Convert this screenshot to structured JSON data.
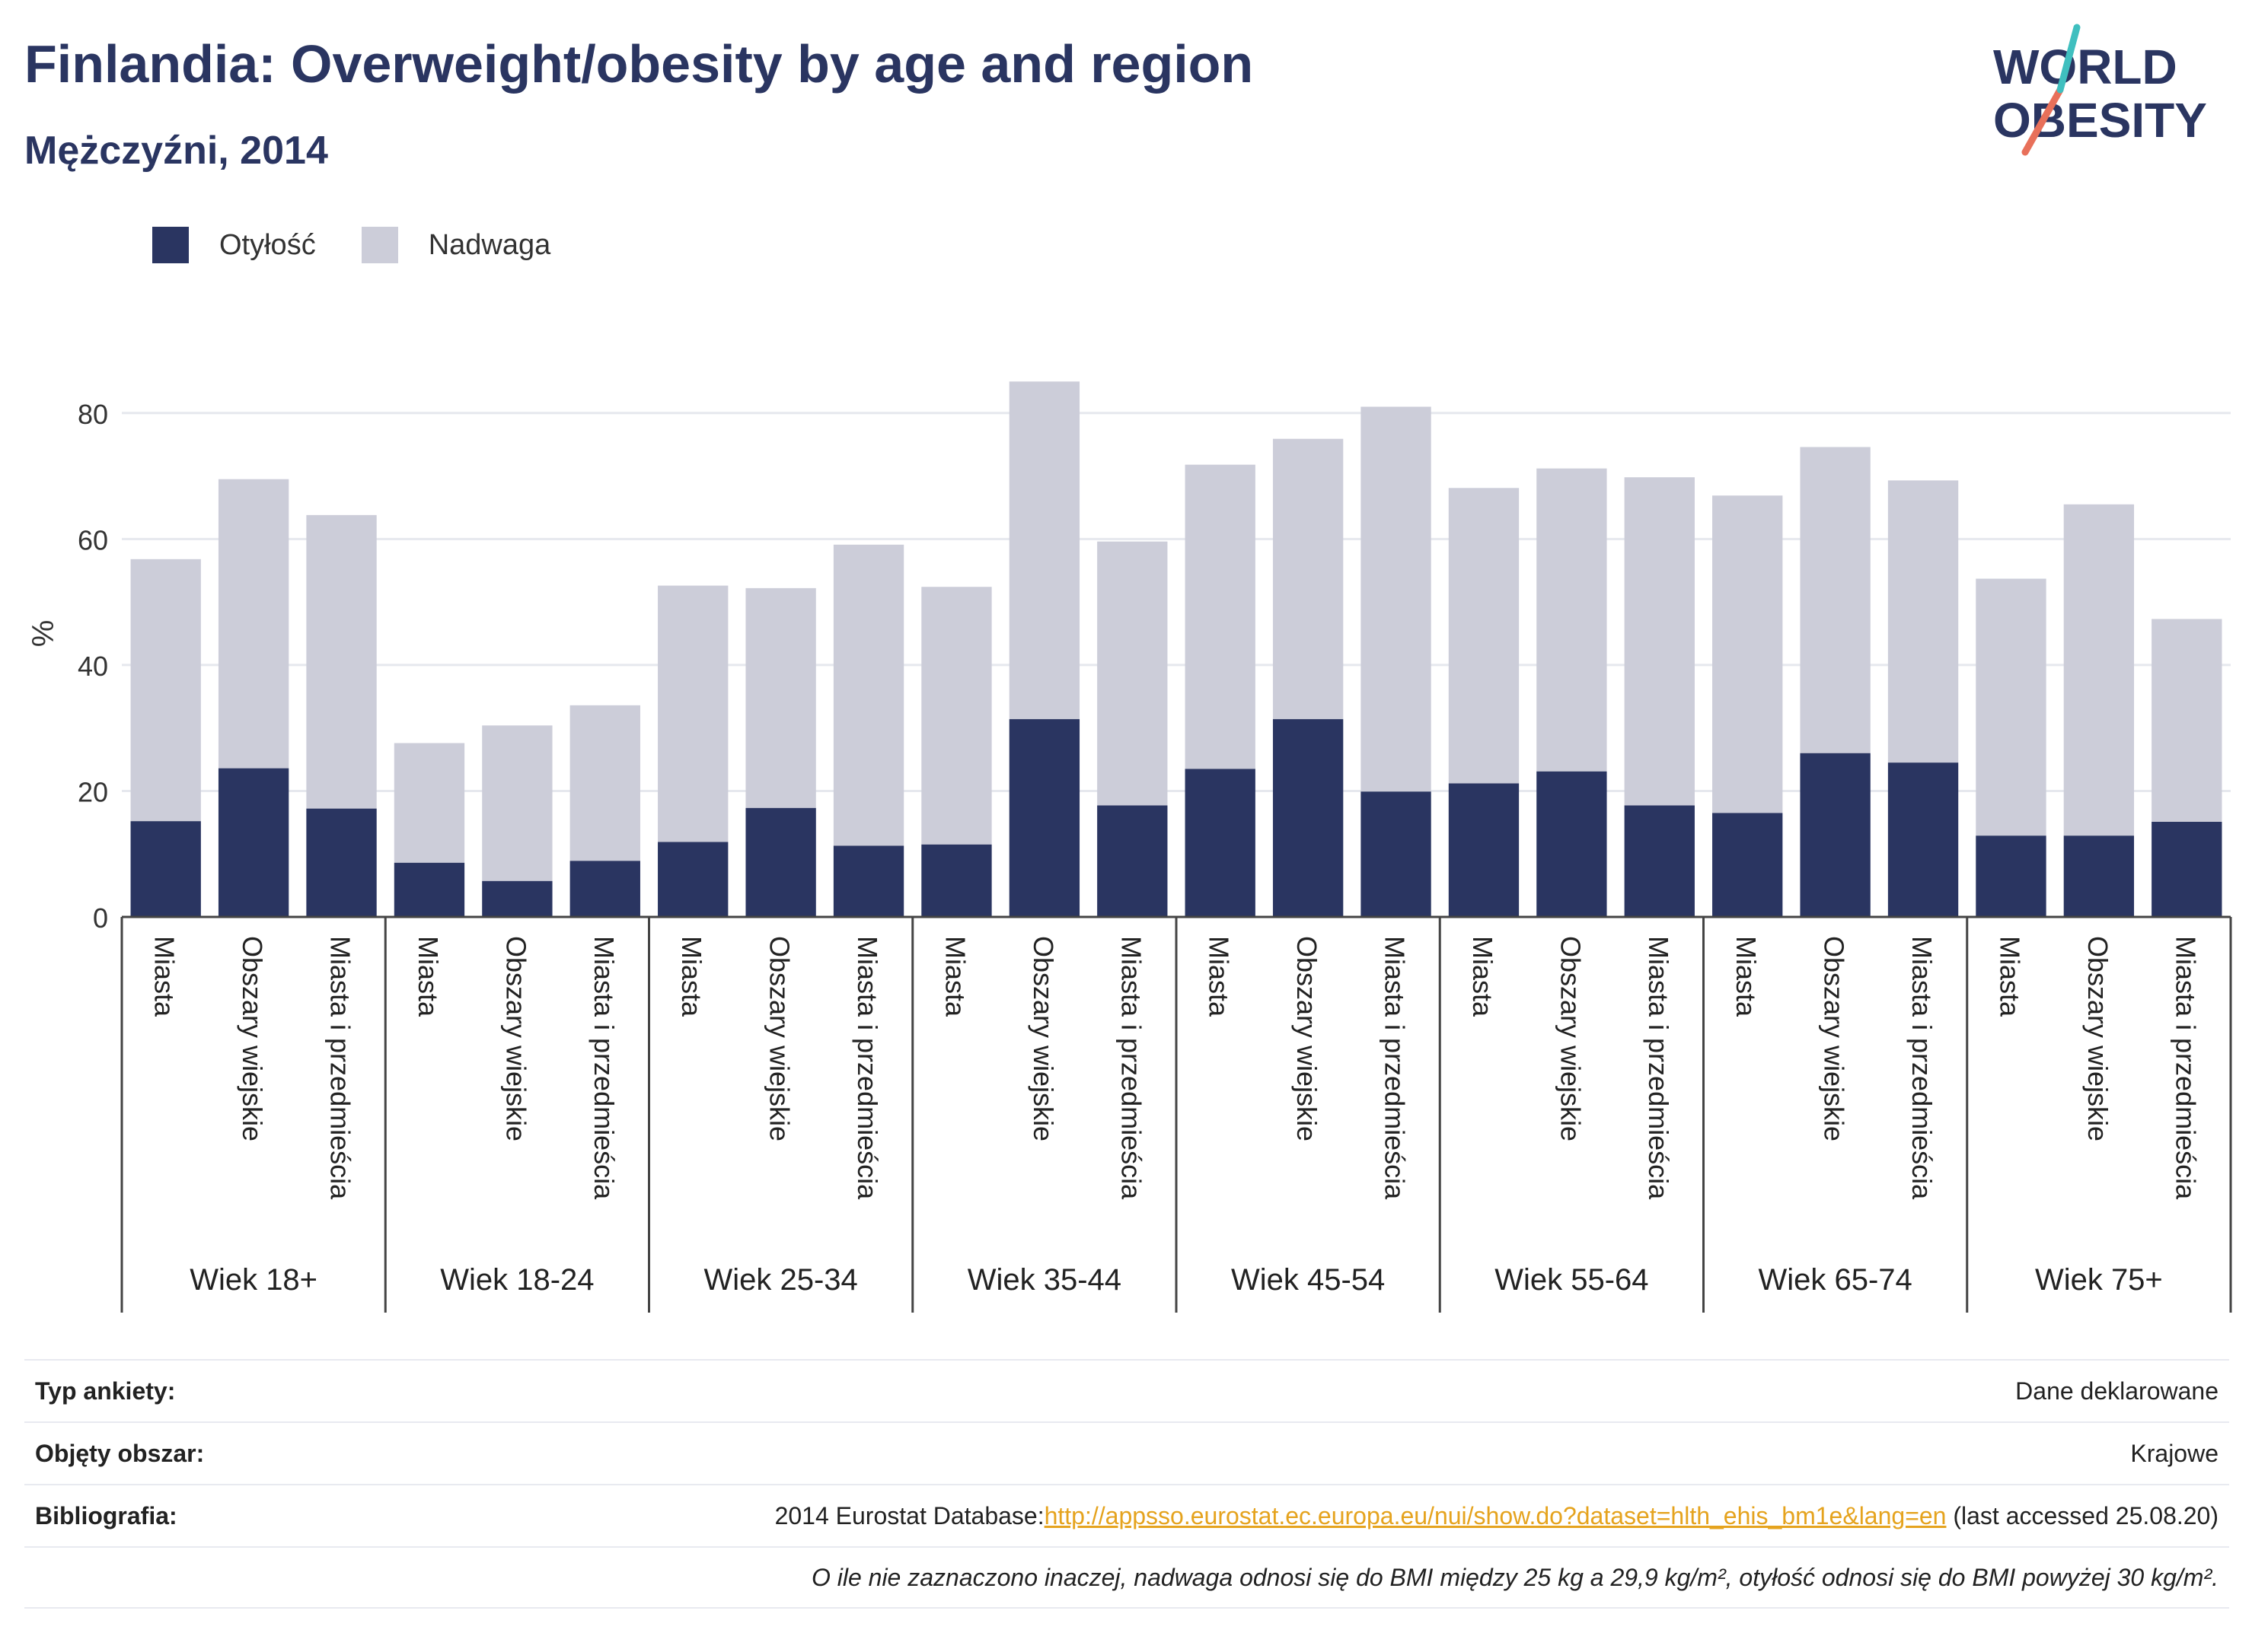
{
  "header": {
    "title": "Finlandia: Overweight/obesity by age and region",
    "subtitle": "Mężczyźni, 2014"
  },
  "logo": {
    "line1": "WORLD",
    "line2": "OBESITY"
  },
  "legend": {
    "items": [
      {
        "label": "Otyłość",
        "color": "#2a3561"
      },
      {
        "label": "Nadwaga",
        "color": "#cccdd9"
      }
    ]
  },
  "chart_data": {
    "type": "bar",
    "stacked": true,
    "ylabel": "%",
    "ylim": [
      0,
      90
    ],
    "yticks": [
      0,
      20,
      40,
      60,
      80
    ],
    "grid": true,
    "legend_position": "top-left",
    "groups": [
      {
        "label": "Wiek 18+",
        "categories": [
          "Miasta",
          "Obszary wiejskie",
          "Miasta i przedmieścia"
        ],
        "obesity": [
          15.2,
          23.6,
          17.2
        ],
        "total": [
          56.8,
          69.5,
          63.8
        ]
      },
      {
        "label": "Wiek 18-24",
        "categories": [
          "Miasta",
          "Obszary wiejskie",
          "Miasta i przedmieścia"
        ],
        "obesity": [
          8.6,
          5.7,
          8.9
        ],
        "total": [
          27.6,
          30.4,
          33.6
        ]
      },
      {
        "label": "Wiek 25-34",
        "categories": [
          "Miasta",
          "Obszary wiejskie",
          "Miasta i przedmieścia"
        ],
        "obesity": [
          11.9,
          17.3,
          11.3
        ],
        "total": [
          52.6,
          52.2,
          59.1
        ]
      },
      {
        "label": "Wiek 35-44",
        "categories": [
          "Miasta",
          "Obszary wiejskie",
          "Miasta i przedmieścia"
        ],
        "obesity": [
          11.5,
          31.4,
          17.7
        ],
        "total": [
          52.4,
          85.0,
          59.6
        ]
      },
      {
        "label": "Wiek 45-54",
        "categories": [
          "Miasta",
          "Obszary wiejskie",
          "Miasta i przedmieścia"
        ],
        "obesity": [
          23.5,
          31.4,
          19.9
        ],
        "total": [
          71.8,
          75.9,
          81.0
        ]
      },
      {
        "label": "Wiek 55-64",
        "categories": [
          "Miasta",
          "Obszary wiejskie",
          "Miasta i przedmieścia"
        ],
        "obesity": [
          21.2,
          23.1,
          17.7
        ],
        "total": [
          68.1,
          71.2,
          69.8
        ]
      },
      {
        "label": "Wiek 65-74",
        "categories": [
          "Miasta",
          "Obszary wiejskie",
          "Miasta i przedmieścia"
        ],
        "obesity": [
          16.5,
          26.0,
          24.5
        ],
        "total": [
          66.9,
          74.6,
          69.3
        ]
      },
      {
        "label": "Wiek 75+",
        "categories": [
          "Miasta",
          "Obszary wiejskie",
          "Miasta i przedmieścia"
        ],
        "obesity": [
          12.9,
          12.9,
          15.1
        ],
        "total": [
          53.7,
          65.5,
          47.3
        ]
      }
    ],
    "series": [
      {
        "name": "Otyłość",
        "color": "#2a3561"
      },
      {
        "name": "Nadwaga",
        "color": "#cccdd9"
      }
    ]
  },
  "footer": {
    "survey_type_label": "Typ ankiety:",
    "survey_type_value": "Dane deklarowane",
    "area_label": "Objęty obszar:",
    "area_value": "Krajowe",
    "bibliography_label": "Bibliografia:",
    "bibliography_prefix": "2014 Eurostat Database:",
    "bibliography_link": "http://appsso.eurostat.ec.europa.eu/nui/show.do?dataset=hlth_ehis_bm1e&lang=en",
    "bibliography_suffix": " (last accessed 25.08.20)",
    "note": "O ile nie zaznaczono inaczej, nadwaga odnosi się do BMI między 25 kg a 29,9 kg/m², otyłość odnosi się do BMI powyżej 30 kg/m²."
  }
}
